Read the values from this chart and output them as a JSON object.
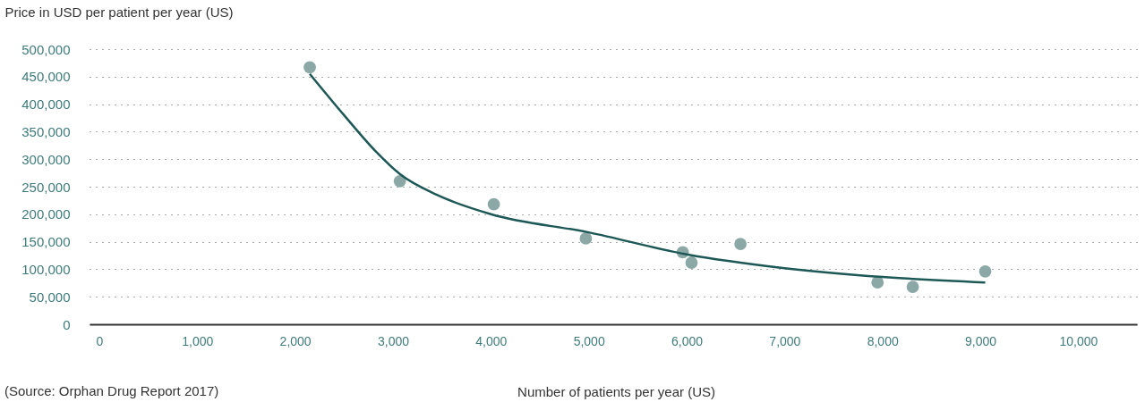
{
  "chart_data": {
    "type": "scatter",
    "xlabel": "Number of patients per year (US)",
    "ylabel": "Price in USD per patient per year (US)",
    "annotations": [
      "(Source: Orphan Drug Report 2017)"
    ],
    "series": [
      {
        "color": "#8ba8a6",
        "marker": "circle",
        "x": [
          2150,
          3070,
          4030,
          4970,
          5960,
          6050,
          6550,
          7950,
          8310,
          9050
        ],
        "values": [
          467000,
          260000,
          218000,
          156000,
          131000,
          112000,
          146000,
          76000,
          68000,
          96000
        ]
      },
      {
        "type": "line",
        "color": "#1d5856",
        "line_style": "solid",
        "x": [
          2150,
          2500,
          2830,
          3070,
          3450,
          4000,
          5000,
          6000,
          7000,
          8000,
          9050
        ],
        "values": [
          455000,
          380000,
          313000,
          273000,
          235000,
          200000,
          167000,
          127000,
          102000,
          86000,
          76000
        ]
      }
    ],
    "xlim": [
      -100,
      10600
    ],
    "xticks": [
      0,
      {
        "value": 1000,
        "label": "1,000"
      },
      {
        "value": 2000,
        "label": "2,000"
      },
      {
        "value": 3000,
        "label": "3,000"
      },
      {
        "value": 4000,
        "label": "4,000"
      },
      {
        "value": 5000,
        "label": "5,000"
      },
      {
        "value": 6000,
        "label": "6,000"
      },
      {
        "value": 7000,
        "label": "7,000"
      },
      {
        "value": 8000,
        "label": "8,000"
      },
      {
        "value": 9000,
        "label": "9,000"
      },
      {
        "value": 10000,
        "label": "10,000"
      }
    ],
    "ylim": [
      0,
      500000
    ],
    "yticks": [
      0,
      {
        "value": 50000,
        "label": "50,000"
      },
      {
        "value": 100000,
        "label": "100,000"
      },
      {
        "value": 150000,
        "label": "150,000"
      },
      {
        "value": 200000,
        "label": "200,000"
      },
      {
        "value": 250000,
        "label": "250,000"
      },
      {
        "value": 300000,
        "label": "300,000"
      },
      {
        "value": 350000,
        "label": "350,000"
      },
      {
        "value": 400000,
        "label": "400,000"
      },
      {
        "value": 450000,
        "label": "450,000"
      },
      {
        "value": 500000,
        "label": "500,000"
      }
    ],
    "grid": "y"
  }
}
